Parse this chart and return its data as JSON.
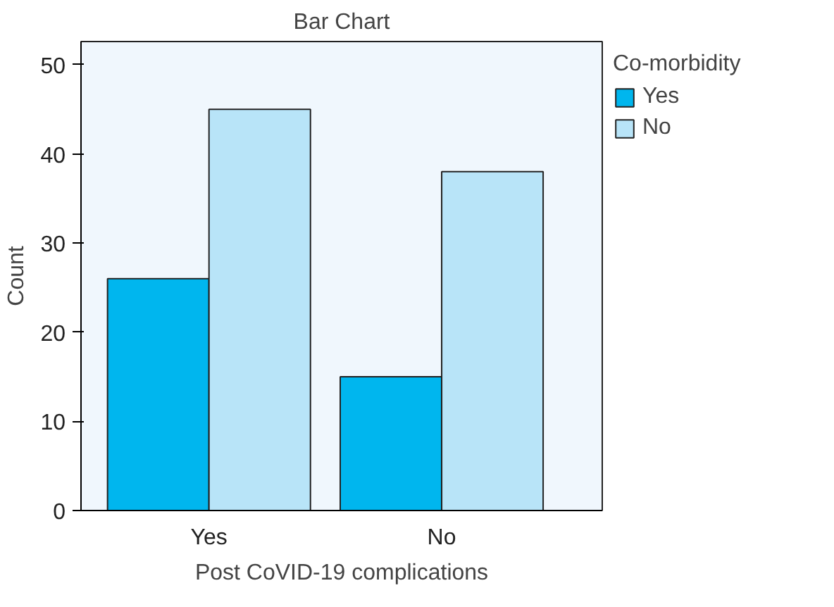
{
  "chart_data": {
    "type": "bar",
    "title": "Bar Chart",
    "xlabel": "Post CoVID-19 complications",
    "ylabel": "Count",
    "legend_title": "Co-morbidity",
    "categories": [
      "Yes",
      "No"
    ],
    "series": [
      {
        "name": "Yes",
        "color": "#00b6ee",
        "values": [
          26,
          15
        ]
      },
      {
        "name": "No",
        "color": "#b8e4f8",
        "values": [
          45,
          38
        ]
      }
    ],
    "ylim": [
      0,
      52.6
    ],
    "yticks": [
      0,
      10,
      20,
      30,
      40,
      50
    ],
    "grid": false,
    "legend": "right"
  }
}
